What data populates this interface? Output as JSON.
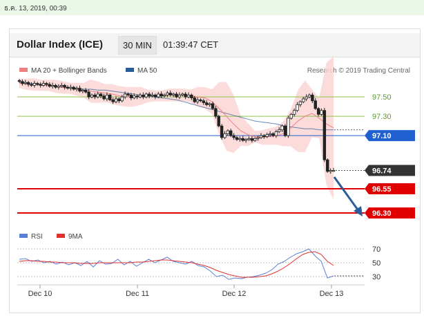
{
  "topbar": {
    "datetime": "ธ.ค. 13, 2019, 00:39"
  },
  "header": {
    "title": "Dollar Index (ICE)",
    "timeframe": "30 MIN",
    "time": "01:39:47 CET"
  },
  "legend": {
    "ma20_bb": "MA 20 + Bollinger Bands",
    "ma50": "MA 50",
    "credit": "Research © 2019 Trading Central",
    "rsi": "RSI",
    "rsi9": "9MA"
  },
  "colors": {
    "ma20": "#f08080",
    "ma50": "#2a5c9a",
    "support": "#e00000",
    "pivot": "#1f5fd0",
    "resistance": "#8bc34a",
    "current": "#333333",
    "rsi": "#5b7fd6",
    "rsi9": "#e03030",
    "arrow": "#2a5c9a"
  },
  "chart_data": [
    {
      "type": "candlestick",
      "x_labels": [
        "Dec 10",
        "Dec 11",
        "Dec 12",
        "Dec 13"
      ],
      "ylim": [
        96.2,
        97.68
      ],
      "levels": [
        {
          "label": "97.50",
          "value": 97.5,
          "kind": "resistance"
        },
        {
          "label": "97.30",
          "value": 97.3,
          "kind": "resistance"
        },
        {
          "label": "97.10",
          "value": 97.1,
          "kind": "pivot"
        },
        {
          "label": "96.74",
          "value": 96.74,
          "kind": "current"
        },
        {
          "label": "96.55",
          "value": 96.55,
          "kind": "support"
        },
        {
          "label": "96.30",
          "value": 96.3,
          "kind": "support"
        }
      ],
      "close": [
        97.66,
        97.64,
        97.65,
        97.63,
        97.62,
        97.64,
        97.63,
        97.62,
        97.64,
        97.63,
        97.61,
        97.62,
        97.6,
        97.61,
        97.62,
        97.6,
        97.59,
        97.6,
        97.58,
        97.59,
        97.56,
        97.57,
        97.55,
        97.5,
        97.52,
        97.5,
        97.53,
        97.51,
        97.48,
        97.52,
        97.47,
        97.45,
        97.48,
        97.46,
        97.5,
        97.53,
        97.52,
        97.49,
        97.51,
        97.5,
        97.52,
        97.5,
        97.53,
        97.51,
        97.52,
        97.5,
        97.53,
        97.51,
        97.52,
        97.54,
        97.52,
        97.53,
        97.5,
        97.52,
        97.53,
        97.5,
        97.52,
        97.49,
        97.45,
        97.47,
        97.46,
        97.44,
        97.42,
        97.43,
        97.38,
        97.3,
        97.2,
        97.08,
        97.12,
        97.15,
        97.1,
        97.08,
        97.06,
        97.07,
        97.05,
        97.06,
        97.07,
        97.05,
        97.07,
        97.08,
        97.1,
        97.09,
        97.11,
        97.12,
        97.1,
        97.14,
        97.16,
        97.2,
        97.1,
        97.28,
        97.32,
        97.36,
        97.42,
        97.45,
        97.48,
        97.5,
        97.52,
        97.46,
        97.38,
        97.32,
        97.36,
        96.85,
        96.73,
        96.74,
        96.74
      ],
      "series": [
        {
          "name": "MA 50",
          "values": [
            97.65,
            97.64,
            97.64,
            97.63,
            97.62,
            97.61,
            97.6,
            97.6,
            97.59,
            97.58,
            97.58,
            97.57,
            97.57,
            97.56,
            97.55,
            97.54,
            97.53,
            97.52,
            97.51,
            97.5,
            97.49,
            97.48,
            97.47,
            97.45,
            97.43,
            97.41,
            97.39,
            97.37,
            97.35,
            97.33,
            97.31,
            97.29,
            97.27,
            97.25,
            97.24,
            97.23,
            97.22,
            97.2,
            97.19,
            97.18,
            97.17,
            97.17,
            97.16,
            97.16,
            97.16
          ]
        },
        {
          "name": "MA 20",
          "values": [
            97.64,
            97.63,
            97.63,
            97.62,
            97.62,
            97.61,
            97.6,
            97.59,
            97.58,
            97.57,
            97.56,
            97.55,
            97.54,
            97.53,
            97.51,
            97.5,
            97.5,
            97.51,
            97.51,
            97.51,
            97.51,
            97.52,
            97.52,
            97.52,
            97.51,
            97.5,
            97.49,
            97.45,
            97.38,
            97.3,
            97.22,
            97.15,
            97.11,
            97.09,
            97.08,
            97.09,
            97.1,
            97.12,
            97.18,
            97.25,
            97.3,
            97.33,
            97.28,
            97.22,
            97.18
          ]
        }
      ]
    },
    {
      "type": "line",
      "x_labels": [
        "Dec 10",
        "Dec 11",
        "Dec 12",
        "Dec 13"
      ],
      "ylim": [
        20,
        80
      ],
      "y_ticks": [
        70,
        50,
        30
      ],
      "series": [
        {
          "name": "RSI",
          "values": [
            55,
            56,
            52,
            54,
            50,
            52,
            48,
            51,
            47,
            50,
            46,
            52,
            44,
            53,
            48,
            49,
            55,
            47,
            52,
            45,
            50,
            55,
            50,
            54,
            58,
            52,
            50,
            48,
            52,
            46,
            44,
            38,
            30,
            32,
            26,
            28,
            27,
            29,
            30,
            32,
            35,
            40,
            48,
            52,
            58,
            63,
            66,
            70,
            60,
            52,
            28,
            31
          ]
        },
        {
          "name": "9MA",
          "values": [
            52,
            53,
            53,
            52,
            52,
            51,
            51,
            50,
            50,
            50,
            49,
            49,
            49,
            50,
            50,
            50,
            50,
            50,
            50,
            51,
            51,
            52,
            53,
            54,
            54,
            53,
            52,
            51,
            50,
            48,
            46,
            43,
            39,
            36,
            33,
            31,
            29,
            29,
            29,
            30,
            31,
            34,
            38,
            43,
            49,
            56,
            62,
            65,
            66,
            62,
            52,
            46
          ]
        }
      ]
    }
  ]
}
